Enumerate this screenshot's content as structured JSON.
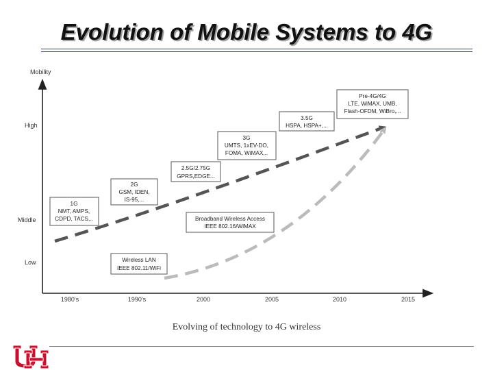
{
  "title": "Evolution of Mobile Systems to 4G",
  "figure": {
    "y_axis_label": "Mobility",
    "y_levels": [
      "High",
      "Middle",
      "Low"
    ],
    "x_ticks": [
      "1980's",
      "1990's",
      "2000",
      "2005",
      "2010",
      "2015"
    ],
    "caption": "Evolving of technology to 4G wireless",
    "generations": [
      {
        "lines": [
          "1G",
          "NMT, AMPS,",
          "CDPD, TACS,.."
        ]
      },
      {
        "lines": [
          "2G",
          "GSM, IDEN,",
          "IS-95,..."
        ]
      },
      {
        "lines": [
          "2.5G/2.75G",
          "GPRS,EDGE..."
        ]
      },
      {
        "lines": [
          "3G",
          "UMTS, 1xEV-DO,",
          "FOMA, WiMAX,.."
        ]
      },
      {
        "lines": [
          "3.5G",
          "HSPA, HSPA+,..."
        ]
      },
      {
        "lines": [
          "Pre-4G/4G",
          "LTE, WiMAX, UMB,",
          "Flash-OFDM, WiBro,..."
        ]
      }
    ],
    "wireless_boxes": [
      {
        "lines": [
          "Broadband Wireless Access",
          "IEEE 802.16/WiMAX"
        ]
      },
      {
        "lines": [
          "Wireless LAN",
          "IEEE 802.11/WiFi"
        ]
      }
    ]
  },
  "colors": {
    "title_rule": "#2c3f80",
    "cellular_curve": "#555555",
    "wireless_curve": "#bbbbbb",
    "logo": "#c8102e"
  },
  "logo_name": "UH interlocking logo"
}
